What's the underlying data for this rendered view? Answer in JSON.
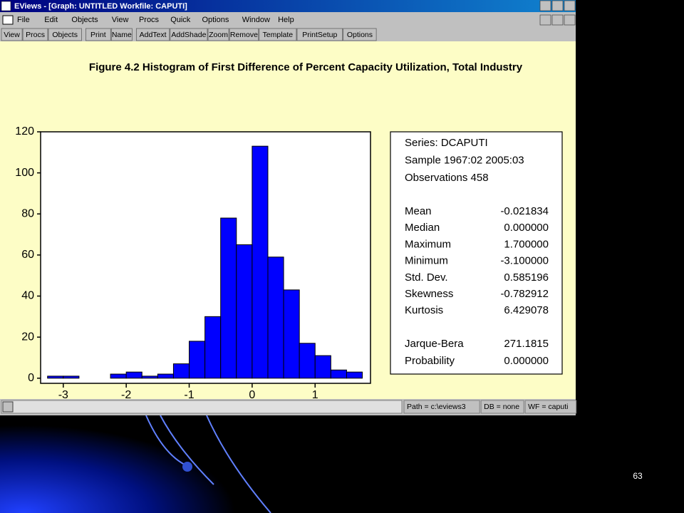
{
  "window": {
    "title": "EViews - [Graph: UNTITLED   Workfile: CAPUTI]",
    "menu": [
      "File",
      "Edit",
      "Objects",
      "View",
      "Procs",
      "Quick",
      "Options",
      "Window",
      "Help"
    ],
    "toolbar": [
      "View",
      "Procs",
      "Objects",
      "Print",
      "Name",
      "AddText",
      "AddShade",
      "Zoom",
      "Remove",
      "Template",
      "PrintSetup",
      "Options"
    ],
    "status": [
      "Path = c:\\eviews3",
      "DB = none",
      "WF = caputi"
    ]
  },
  "slide_number": "63",
  "chart_data": {
    "type": "histogram",
    "title": "Figure 4.2 Histogram of First Difference of Percent Capacity Utilization, Total Industry",
    "bins": [
      -3.25,
      -3.0,
      -2.75,
      -2.5,
      -2.25,
      -2.0,
      -1.75,
      -1.5,
      -1.25,
      -1.0,
      -0.75,
      -0.5,
      -0.25,
      0.0,
      0.25,
      0.5,
      0.75,
      1.0,
      1.25,
      1.5,
      1.75
    ],
    "counts": [
      1,
      1,
      0,
      0,
      2,
      3,
      1,
      2,
      7,
      18,
      30,
      78,
      65,
      113,
      59,
      43,
      17,
      11,
      4,
      3
    ],
    "color": "#0000ff",
    "xlim": [
      -3.36,
      1.88
    ],
    "xticks": [
      -3,
      -2,
      -1,
      0,
      1
    ],
    "ylim": [
      -2.5,
      120
    ],
    "yticks": [
      0,
      20,
      40,
      60,
      80,
      100,
      120
    ],
    "stats_header": [
      "Series: DCAPUTI",
      "Sample 1967:02 2005:03",
      "Observations 458"
    ],
    "stats": [
      {
        "label": "Mean",
        "value": "-0.021834"
      },
      {
        "label": "Median",
        "value": "0.000000"
      },
      {
        "label": "Maximum",
        "value": "1.700000"
      },
      {
        "label": "Minimum",
        "value": "-3.100000"
      },
      {
        "label": "Std. Dev.",
        "value": "0.585196"
      },
      {
        "label": "Skewness",
        "value": "-0.782912"
      },
      {
        "label": "Kurtosis",
        "value": "6.429078"
      },
      {
        "label": "Jarque-Bera",
        "value": "271.1815"
      },
      {
        "label": "Probability",
        "value": "0.000000"
      }
    ]
  }
}
